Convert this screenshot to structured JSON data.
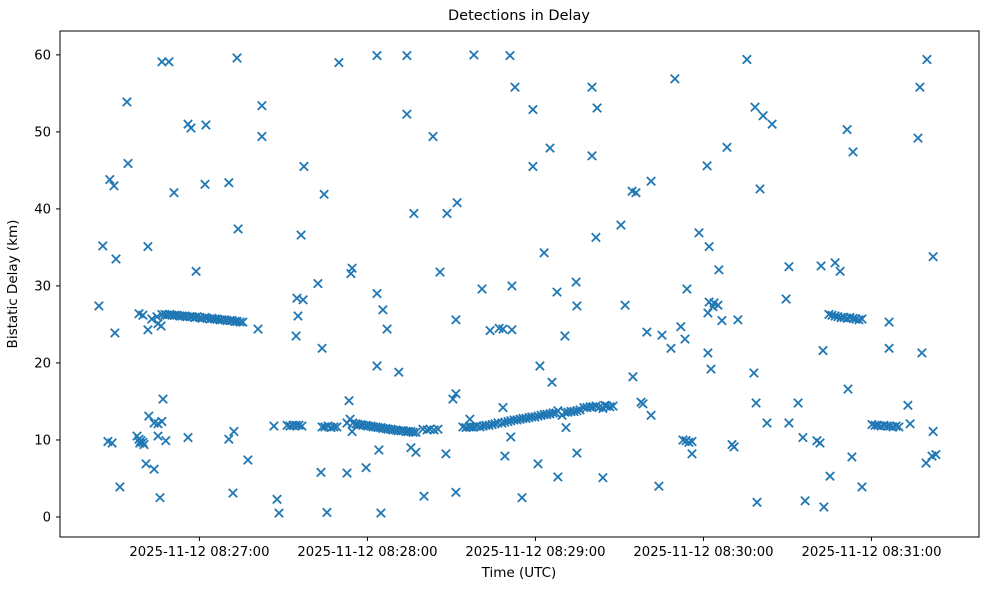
{
  "title": "Detections in Delay",
  "axes": {
    "x": {
      "label": "Time (UTC)",
      "unit": "seconds since 2025-11-12 08:26:00 UTC",
      "range_seconds": [
        10.2,
        338.4
      ],
      "ticks": [
        {
          "seconds": 60,
          "label": "2025-11-12 08:27:00"
        },
        {
          "seconds": 120,
          "label": "2025-11-12 08:28:00"
        },
        {
          "seconds": 180,
          "label": "2025-11-12 08:29:00"
        },
        {
          "seconds": 240,
          "label": "2025-11-12 08:30:00"
        },
        {
          "seconds": 300,
          "label": "2025-11-12 08:31:00"
        }
      ]
    },
    "y": {
      "label": "Bistatic Delay (km)",
      "range": [
        -2.6,
        63.1
      ],
      "ticks": [
        0,
        10,
        20,
        30,
        40,
        50,
        60
      ]
    }
  },
  "chart_data": {
    "type": "scatter",
    "marker": "x",
    "marker_color": "#1f77b4",
    "title": "Detections in Delay",
    "xlabel": "Time (UTC)",
    "ylabel": "Bistatic Delay (km)",
    "grid": false,
    "legend": "none",
    "x_unit": "seconds since 2025-11-12 08:26:00 UTC",
    "points": [
      [
        24.1,
        27.4
      ],
      [
        25.5,
        35.2
      ],
      [
        27.3,
        9.8
      ],
      [
        28.0,
        43.8
      ],
      [
        28.8,
        9.6
      ],
      [
        29.5,
        43.0
      ],
      [
        29.8,
        23.9
      ],
      [
        30.2,
        33.5
      ],
      [
        31.6,
        3.9
      ],
      [
        34.1,
        53.9
      ],
      [
        34.5,
        45.9
      ],
      [
        37.7,
        10.5
      ],
      [
        38.4,
        26.4
      ],
      [
        38.4,
        10.1
      ],
      [
        38.7,
        9.6
      ],
      [
        39.1,
        9.9
      ],
      [
        39.8,
        26.2
      ],
      [
        39.8,
        9.7
      ],
      [
        40.2,
        9.4
      ],
      [
        40.9,
        6.9
      ],
      [
        41.6,
        24.3
      ],
      [
        41.6,
        35.1
      ],
      [
        41.9,
        13.1
      ],
      [
        43.0,
        25.7
      ],
      [
        43.8,
        6.2
      ],
      [
        43.8,
        12.2
      ],
      [
        44.8,
        26.0
      ],
      [
        45.2,
        25.1
      ],
      [
        45.2,
        12.1
      ],
      [
        45.2,
        10.5
      ],
      [
        45.9,
        2.5
      ],
      [
        46.3,
        24.8
      ],
      [
        46.6,
        12.4
      ],
      [
        46.6,
        59.1
      ],
      [
        47.0,
        15.3
      ],
      [
        48.0,
        9.9
      ],
      [
        49.1,
        59.1
      ],
      [
        50.9,
        42.1
      ],
      [
        55.9,
        10.3
      ],
      [
        55.9,
        51.0
      ],
      [
        57.0,
        50.5
      ],
      [
        58.8,
        31.9
      ],
      [
        62.0,
        43.2
      ],
      [
        62.3,
        50.9
      ],
      [
        70.5,
        43.4
      ],
      [
        70.5,
        10.1
      ],
      [
        72.0,
        3.1
      ],
      [
        72.3,
        11.1
      ],
      [
        73.4,
        59.6
      ],
      [
        73.8,
        37.4
      ],
      [
        77.3,
        7.4
      ],
      [
        80.9,
        24.4
      ],
      [
        82.3,
        53.4
      ],
      [
        82.3,
        49.4
      ],
      [
        87.7,
        2.3
      ],
      [
        88.4,
        0.5
      ],
      [
        94.5,
        23.5
      ],
      [
        94.8,
        28.4
      ],
      [
        95.2,
        26.1
      ],
      [
        96.3,
        36.6
      ],
      [
        97.0,
        28.2
      ],
      [
        97.3,
        45.5
      ],
      [
        102.3,
        30.3
      ],
      [
        103.4,
        5.8
      ],
      [
        103.8,
        21.9
      ],
      [
        104.5,
        41.9
      ],
      [
        105.5,
        0.6
      ],
      [
        109.8,
        59.0
      ],
      [
        112.7,
        5.7
      ],
      [
        113.4,
        15.1
      ],
      [
        114.1,
        31.6
      ],
      [
        114.5,
        32.3
      ],
      [
        119.5,
        6.4
      ],
      [
        123.4,
        59.9
      ],
      [
        123.4,
        29.0
      ],
      [
        123.4,
        19.6
      ],
      [
        124.1,
        8.7
      ],
      [
        124.8,
        0.5
      ],
      [
        125.5,
        26.9
      ],
      [
        127.0,
        24.4
      ],
      [
        131.2,
        18.8
      ],
      [
        134.1,
        59.9
      ],
      [
        134.1,
        52.3
      ],
      [
        135.5,
        9.0
      ],
      [
        136.6,
        39.4
      ],
      [
        137.3,
        8.4
      ],
      [
        140.2,
        2.7
      ],
      [
        143.4,
        49.4
      ],
      [
        145.9,
        31.8
      ],
      [
        148.0,
        8.2
      ],
      [
        148.4,
        39.4
      ],
      [
        150.5,
        15.3
      ],
      [
        151.6,
        16.0
      ],
      [
        151.6,
        25.6
      ],
      [
        151.6,
        3.2
      ],
      [
        152.0,
        40.8
      ],
      [
        158.0,
        60.0
      ],
      [
        160.9,
        29.6
      ],
      [
        163.8,
        24.2
      ],
      [
        167.0,
        24.5
      ],
      [
        168.4,
        24.4
      ],
      [
        168.4,
        14.2
      ],
      [
        169.1,
        7.9
      ],
      [
        170.9,
        59.9
      ],
      [
        171.2,
        10.4
      ],
      [
        171.6,
        24.3
      ],
      [
        171.6,
        30.0
      ],
      [
        172.7,
        55.8
      ],
      [
        175.2,
        2.5
      ],
      [
        179.1,
        52.9
      ],
      [
        179.1,
        45.5
      ],
      [
        180.9,
        6.9
      ],
      [
        181.6,
        19.6
      ],
      [
        183.1,
        34.3
      ],
      [
        185.2,
        47.9
      ],
      [
        185.9,
        17.5
      ],
      [
        187.7,
        29.2
      ],
      [
        188.0,
        5.2
      ],
      [
        190.5,
        23.5
      ],
      [
        190.9,
        11.6
      ],
      [
        194.5,
        30.5
      ],
      [
        194.8,
        8.3
      ],
      [
        194.8,
        27.4
      ],
      [
        200.2,
        55.8
      ],
      [
        200.2,
        46.9
      ],
      [
        201.6,
        36.3
      ],
      [
        202.0,
        53.1
      ],
      [
        204.1,
        5.1
      ],
      [
        210.5,
        37.9
      ],
      [
        212.0,
        27.5
      ],
      [
        214.5,
        42.3
      ],
      [
        214.8,
        18.2
      ],
      [
        215.9,
        42.1
      ],
      [
        217.7,
        14.9
      ],
      [
        218.4,
        14.7
      ],
      [
        219.8,
        24.0
      ],
      [
        221.3,
        43.6
      ],
      [
        221.3,
        13.2
      ],
      [
        224.1,
        4.0
      ],
      [
        225.2,
        23.6
      ],
      [
        228.4,
        21.9
      ],
      [
        229.8,
        56.9
      ],
      [
        231.9,
        24.7
      ],
      [
        232.7,
        10.0
      ],
      [
        233.4,
        23.1
      ],
      [
        233.8,
        9.9
      ],
      [
        234.1,
        29.6
      ],
      [
        234.8,
        9.7
      ],
      [
        235.9,
        9.8
      ],
      [
        235.9,
        8.2
      ],
      [
        238.4,
        36.9
      ],
      [
        241.3,
        45.6
      ],
      [
        241.6,
        21.3
      ],
      [
        241.6,
        26.5
      ],
      [
        242.0,
        35.1
      ],
      [
        242.0,
        27.9
      ],
      [
        242.7,
        19.2
      ],
      [
        243.4,
        27.3
      ],
      [
        243.8,
        27.8
      ],
      [
        245.2,
        27.5
      ],
      [
        245.5,
        32.1
      ],
      [
        246.6,
        25.5
      ],
      [
        248.4,
        48.0
      ],
      [
        250.2,
        9.4
      ],
      [
        250.9,
        9.1
      ],
      [
        252.3,
        25.6
      ],
      [
        255.5,
        59.4
      ],
      [
        258.0,
        18.7
      ],
      [
        258.4,
        53.2
      ],
      [
        258.8,
        14.8
      ],
      [
        259.1,
        1.9
      ],
      [
        260.2,
        42.6
      ],
      [
        261.3,
        52.1
      ],
      [
        262.7,
        12.2
      ],
      [
        264.5,
        51.0
      ],
      [
        269.5,
        28.3
      ],
      [
        270.5,
        12.2
      ],
      [
        270.5,
        32.5
      ],
      [
        273.8,
        14.8
      ],
      [
        275.5,
        10.3
      ],
      [
        276.3,
        2.1
      ],
      [
        280.5,
        9.9
      ],
      [
        281.6,
        9.6
      ],
      [
        282.0,
        32.6
      ],
      [
        282.7,
        21.6
      ],
      [
        283.0,
        1.3
      ],
      [
        285.2,
        5.3
      ],
      [
        287.0,
        33.0
      ],
      [
        288.8,
        31.9
      ],
      [
        291.3,
        50.3
      ],
      [
        291.6,
        16.6
      ],
      [
        293.0,
        7.8
      ],
      [
        293.4,
        47.4
      ],
      [
        296.6,
        3.9
      ],
      [
        306.3,
        25.3
      ],
      [
        306.3,
        21.9
      ],
      [
        313.0,
        14.5
      ],
      [
        313.8,
        12.1
      ],
      [
        316.6,
        49.2
      ],
      [
        317.3,
        55.8
      ],
      [
        318.0,
        21.3
      ],
      [
        319.5,
        7.0
      ],
      [
        319.8,
        59.4
      ],
      [
        321.6,
        7.9
      ],
      [
        322.0,
        33.8
      ],
      [
        322.0,
        11.1
      ],
      [
        323.0,
        8.1
      ],
      [
        46.6,
        26.3
      ],
      [
        47.7,
        26.3
      ],
      [
        48.4,
        26.2
      ],
      [
        49.5,
        26.3
      ],
      [
        50.2,
        26.2
      ],
      [
        51.2,
        26.2
      ],
      [
        52.0,
        26.2
      ],
      [
        53.0,
        26.1
      ],
      [
        53.8,
        26.1
      ],
      [
        54.8,
        26.1
      ],
      [
        55.5,
        26.0
      ],
      [
        56.6,
        26.0
      ],
      [
        57.3,
        26.0
      ],
      [
        58.4,
        25.9
      ],
      [
        59.1,
        26.0
      ],
      [
        60.2,
        25.9
      ],
      [
        60.9,
        25.8
      ],
      [
        62.0,
        25.9
      ],
      [
        62.7,
        25.8
      ],
      [
        63.8,
        25.7
      ],
      [
        64.5,
        25.8
      ],
      [
        65.5,
        25.7
      ],
      [
        66.3,
        25.7
      ],
      [
        67.3,
        25.6
      ],
      [
        68.0,
        25.6
      ],
      [
        69.1,
        25.6
      ],
      [
        69.8,
        25.5
      ],
      [
        70.9,
        25.5
      ],
      [
        71.6,
        25.5
      ],
      [
        72.7,
        25.4
      ],
      [
        73.4,
        25.4
      ],
      [
        74.5,
        25.3
      ],
      [
        75.5,
        25.3
      ],
      [
        86.6,
        11.8
      ],
      [
        91.3,
        11.9
      ],
      [
        92.3,
        11.8
      ],
      [
        93.4,
        11.9
      ],
      [
        94.5,
        11.9
      ],
      [
        95.5,
        11.9
      ],
      [
        96.6,
        11.8
      ],
      [
        103.8,
        11.7
      ],
      [
        104.8,
        11.7
      ],
      [
        105.9,
        11.8
      ],
      [
        107.0,
        11.6
      ],
      [
        108.0,
        11.7
      ],
      [
        109.1,
        11.7
      ],
      [
        112.7,
        12.2
      ],
      [
        113.8,
        12.7
      ],
      [
        114.5,
        11.1
      ],
      [
        114.8,
        12.2
      ],
      [
        115.9,
        12.1
      ],
      [
        116.6,
        12.0
      ],
      [
        117.7,
        12.0
      ],
      [
        118.4,
        11.9
      ],
      [
        119.5,
        11.9
      ],
      [
        120.2,
        11.8
      ],
      [
        121.3,
        11.8
      ],
      [
        122.0,
        11.7
      ],
      [
        123.0,
        11.7
      ],
      [
        123.8,
        11.6
      ],
      [
        124.8,
        11.6
      ],
      [
        125.5,
        11.5
      ],
      [
        126.6,
        11.5
      ],
      [
        127.3,
        11.4
      ],
      [
        128.4,
        11.4
      ],
      [
        129.1,
        11.3
      ],
      [
        130.2,
        11.3
      ],
      [
        130.9,
        11.2
      ],
      [
        132.0,
        11.2
      ],
      [
        132.7,
        11.2
      ],
      [
        133.8,
        11.1
      ],
      [
        134.5,
        11.1
      ],
      [
        135.5,
        11.1
      ],
      [
        136.3,
        11.0
      ],
      [
        137.3,
        11.0
      ],
      [
        139.8,
        11.4
      ],
      [
        141.3,
        11.3
      ],
      [
        142.3,
        11.4
      ],
      [
        143.8,
        11.3
      ],
      [
        145.2,
        11.4
      ],
      [
        154.1,
        11.7
      ],
      [
        155.2,
        11.6
      ],
      [
        156.3,
        11.7
      ],
      [
        156.6,
        12.7
      ],
      [
        157.0,
        11.7
      ],
      [
        158.0,
        11.7
      ],
      [
        159.1,
        11.8
      ],
      [
        160.2,
        11.7
      ],
      [
        161.3,
        11.8
      ],
      [
        162.3,
        11.9
      ],
      [
        163.4,
        11.9
      ],
      [
        164.5,
        12.0
      ],
      [
        165.5,
        12.1
      ],
      [
        166.6,
        12.2
      ],
      [
        168.0,
        12.2
      ],
      [
        169.1,
        12.3
      ],
      [
        170.2,
        12.4
      ],
      [
        171.2,
        12.5
      ],
      [
        172.3,
        12.6
      ],
      [
        173.4,
        12.6
      ],
      [
        174.5,
        12.7
      ],
      [
        175.5,
        12.8
      ],
      [
        176.6,
        12.8
      ],
      [
        177.7,
        12.9
      ],
      [
        178.7,
        13.0
      ],
      [
        179.8,
        13.0
      ],
      [
        180.9,
        13.1
      ],
      [
        182.0,
        13.2
      ],
      [
        183.1,
        13.3
      ],
      [
        184.1,
        13.3
      ],
      [
        185.2,
        13.4
      ],
      [
        186.3,
        13.5
      ],
      [
        187.3,
        13.5
      ],
      [
        188.0,
        13.8
      ],
      [
        189.5,
        13.2
      ],
      [
        190.5,
        13.6
      ],
      [
        191.6,
        13.6
      ],
      [
        192.7,
        13.7
      ],
      [
        193.8,
        13.7
      ],
      [
        194.8,
        13.8
      ],
      [
        195.9,
        13.9
      ],
      [
        197.3,
        14.2
      ],
      [
        198.4,
        14.2
      ],
      [
        199.5,
        14.3
      ],
      [
        200.5,
        14.3
      ],
      [
        201.6,
        14.4
      ],
      [
        202.7,
        14.2
      ],
      [
        204.1,
        14.1
      ],
      [
        204.8,
        14.5
      ],
      [
        205.5,
        14.4
      ],
      [
        206.6,
        14.3
      ],
      [
        207.7,
        14.4
      ],
      [
        284.8,
        26.3
      ],
      [
        285.9,
        26.2
      ],
      [
        287.0,
        26.1
      ],
      [
        288.0,
        26.0
      ],
      [
        289.1,
        25.9
      ],
      [
        290.2,
        25.9
      ],
      [
        291.3,
        25.8
      ],
      [
        292.3,
        25.9
      ],
      [
        293.4,
        25.8
      ],
      [
        294.5,
        25.7
      ],
      [
        295.5,
        25.6
      ],
      [
        296.6,
        25.7
      ],
      [
        300.2,
        12.0
      ],
      [
        301.3,
        11.9
      ],
      [
        302.3,
        11.9
      ],
      [
        303.4,
        11.8
      ],
      [
        304.5,
        11.9
      ],
      [
        305.5,
        11.8
      ],
      [
        306.6,
        11.8
      ],
      [
        307.7,
        11.7
      ],
      [
        308.8,
        11.8
      ],
      [
        309.8,
        11.7
      ]
    ]
  }
}
